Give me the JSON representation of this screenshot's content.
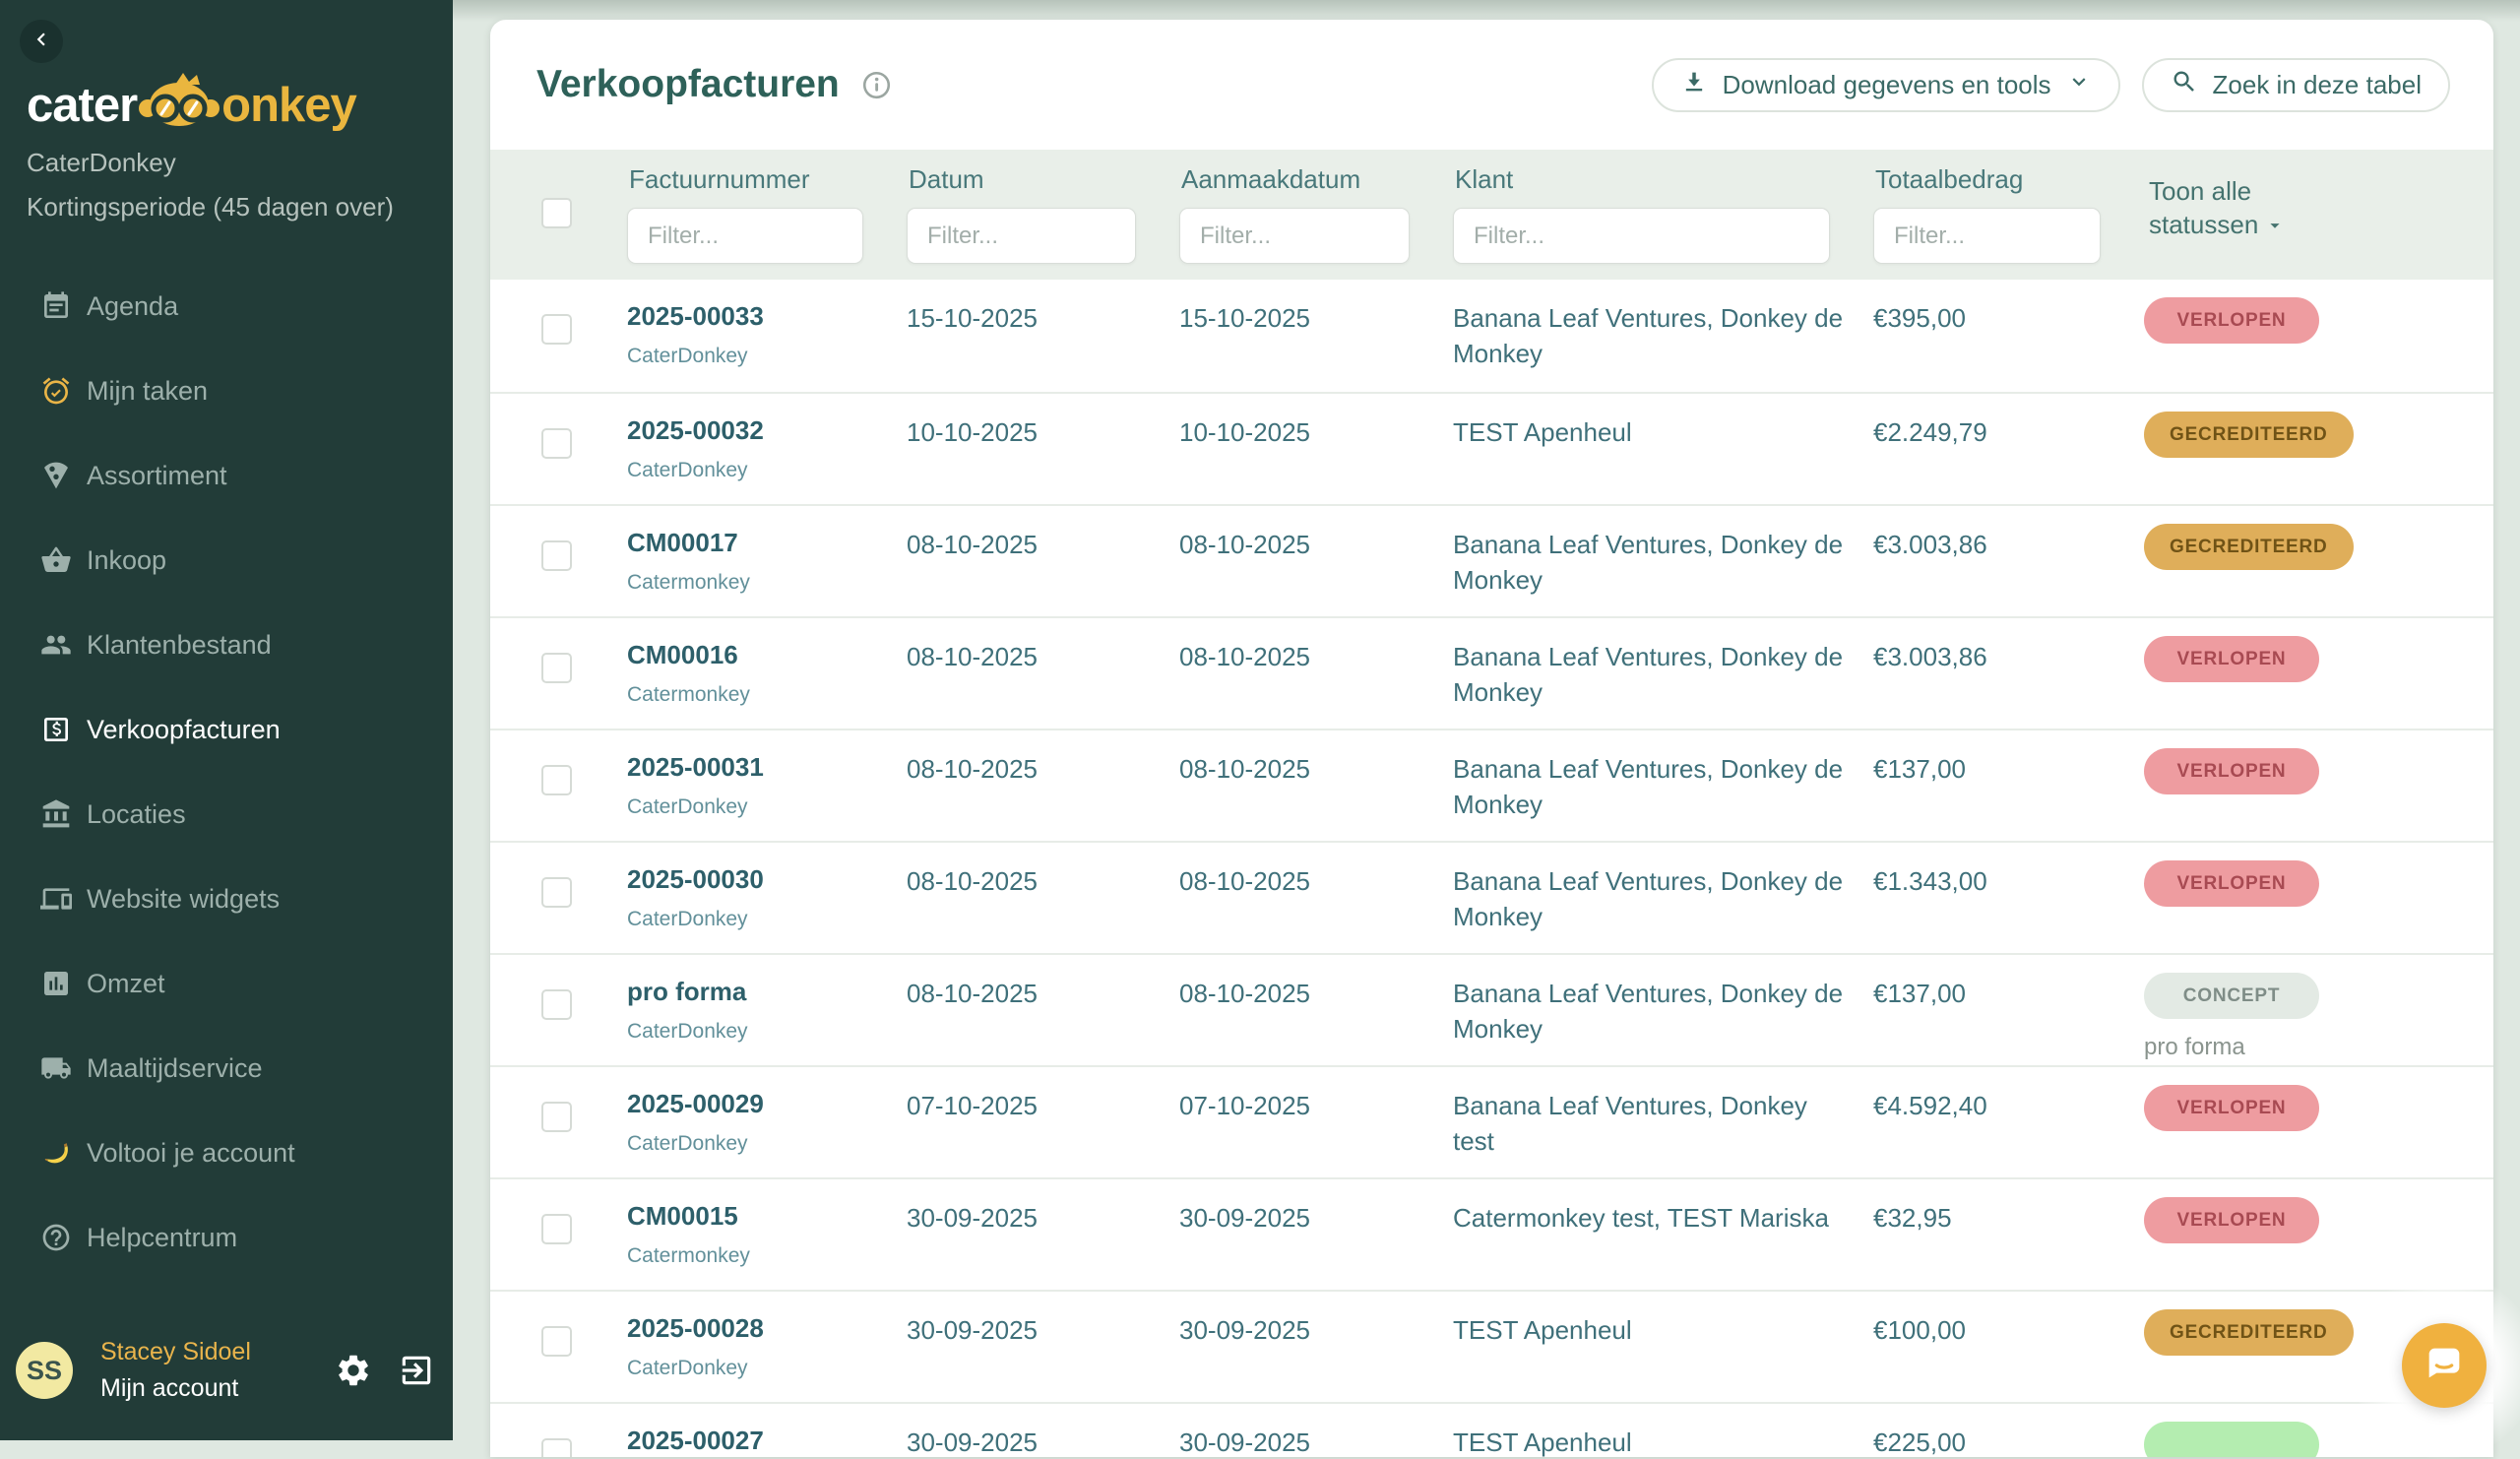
{
  "sidebar": {
    "logo_text_left": "cater",
    "logo_text_right": "onkey",
    "org_name": "CaterDonkey",
    "period_note": "Kortingsperiode (45 dagen over)",
    "items": [
      {
        "label": "Agenda",
        "icon": "calendar-icon",
        "active": false
      },
      {
        "label": "Mijn taken",
        "icon": "alarm-icon",
        "active": false,
        "icon_color": "#eab547"
      },
      {
        "label": "Assortiment",
        "icon": "pizza-icon",
        "active": false
      },
      {
        "label": "Inkoop",
        "icon": "basket-icon",
        "active": false
      },
      {
        "label": "Klantenbestand",
        "icon": "people-icon",
        "active": false
      },
      {
        "label": "Verkoopfacturen",
        "icon": "invoice-icon",
        "active": true
      },
      {
        "label": "Locaties",
        "icon": "bank-icon",
        "active": false
      },
      {
        "label": "Website widgets",
        "icon": "laptop-icon",
        "active": false
      },
      {
        "label": "Omzet",
        "icon": "chart-icon",
        "active": false
      },
      {
        "label": "Maaltijdservice",
        "icon": "truck-icon",
        "active": false
      },
      {
        "label": "Voltooi je account",
        "icon": "banana-icon",
        "active": false
      },
      {
        "label": "Helpcentrum",
        "icon": "help-icon",
        "active": false
      }
    ],
    "user": {
      "initials": "SS",
      "name": "Stacey Sidoel",
      "account_label": "Mijn account"
    }
  },
  "header": {
    "title": "Verkoopfacturen",
    "download_button": "Download gegevens en tools",
    "search_button": "Zoek in deze tabel"
  },
  "table": {
    "columns": [
      "Factuurnummer",
      "Datum",
      "Aanmaakdatum",
      "Klant",
      "Totaalbedrag"
    ],
    "filter_placeholder": "Filter...",
    "status_filter_label": "Toon alle statussen",
    "rows": [
      {
        "number": "2025-00033",
        "org": "CaterDonkey",
        "date": "15-10-2025",
        "created": "15-10-2025",
        "client": "Banana Leaf Ventures, Donkey de Monkey",
        "amount": "€395,00",
        "status": "VERLOPEN",
        "variant": "red"
      },
      {
        "number": "2025-00032",
        "org": "CaterDonkey",
        "date": "10-10-2025",
        "created": "10-10-2025",
        "client": "TEST Apenheul",
        "amount": "€2.249,79",
        "status": "GECREDITEERD",
        "variant": "gold"
      },
      {
        "number": "CM00017",
        "org": "Catermonkey",
        "date": "08-10-2025",
        "created": "08-10-2025",
        "client": "Banana Leaf Ventures, Donkey de Monkey",
        "amount": "€3.003,86",
        "status": "GECREDITEERD",
        "variant": "gold"
      },
      {
        "number": "CM00016",
        "org": "Catermonkey",
        "date": "08-10-2025",
        "created": "08-10-2025",
        "client": "Banana Leaf Ventures, Donkey de Monkey",
        "amount": "€3.003,86",
        "status": "VERLOPEN",
        "variant": "red"
      },
      {
        "number": "2025-00031",
        "org": "CaterDonkey",
        "date": "08-10-2025",
        "created": "08-10-2025",
        "client": "Banana Leaf Ventures, Donkey de Monkey",
        "amount": "€137,00",
        "status": "VERLOPEN",
        "variant": "red"
      },
      {
        "number": "2025-00030",
        "org": "CaterDonkey",
        "date": "08-10-2025",
        "created": "08-10-2025",
        "client": "Banana Leaf Ventures, Donkey de Monkey",
        "amount": "€1.343,00",
        "status": "VERLOPEN",
        "variant": "red"
      },
      {
        "number": "pro forma",
        "org": "CaterDonkey",
        "date": "08-10-2025",
        "created": "08-10-2025",
        "client": "Banana Leaf Ventures, Donkey de Monkey",
        "amount": "€137,00",
        "status": "CONCEPT",
        "variant": "concept",
        "note": "pro forma"
      },
      {
        "number": "2025-00029",
        "org": "CaterDonkey",
        "date": "07-10-2025",
        "created": "07-10-2025",
        "client": "Banana Leaf Ventures, Donkey test",
        "amount": "€4.592,40",
        "status": "VERLOPEN",
        "variant": "red"
      },
      {
        "number": "CM00015",
        "org": "Catermonkey",
        "date": "30-09-2025",
        "created": "30-09-2025",
        "client": "Catermonkey test, TEST Mariska",
        "amount": "€32,95",
        "status": "VERLOPEN",
        "variant": "red"
      },
      {
        "number": "2025-00028",
        "org": "CaterDonkey",
        "date": "30-09-2025",
        "created": "30-09-2025",
        "client": "TEST Apenheul",
        "amount": "€100,00",
        "status": "GECREDITEERD",
        "variant": "gold"
      },
      {
        "number": "2025-00027",
        "org": "",
        "date": "30-09-2025",
        "created": "30-09-2025",
        "client": "TEST Apenheul",
        "amount": "€225,00",
        "status": "",
        "variant": "green"
      }
    ]
  },
  "colors": {
    "sidebar_bg": "#223c38",
    "accent_yellow": "#eab547",
    "title_teal": "#2e6159",
    "status_verlopen_bg": "#ee9ca0",
    "status_verlopen_text": "#a84a52",
    "status_gecrediteerd_bg": "#dfae5a",
    "status_gecrediteerd_text": "#705316",
    "status_concept_bg": "#e3eae4",
    "status_concept_text": "#7f8d87",
    "status_paid_bg": "#b4edb0",
    "chat_button_bg": "#f0b13f"
  }
}
